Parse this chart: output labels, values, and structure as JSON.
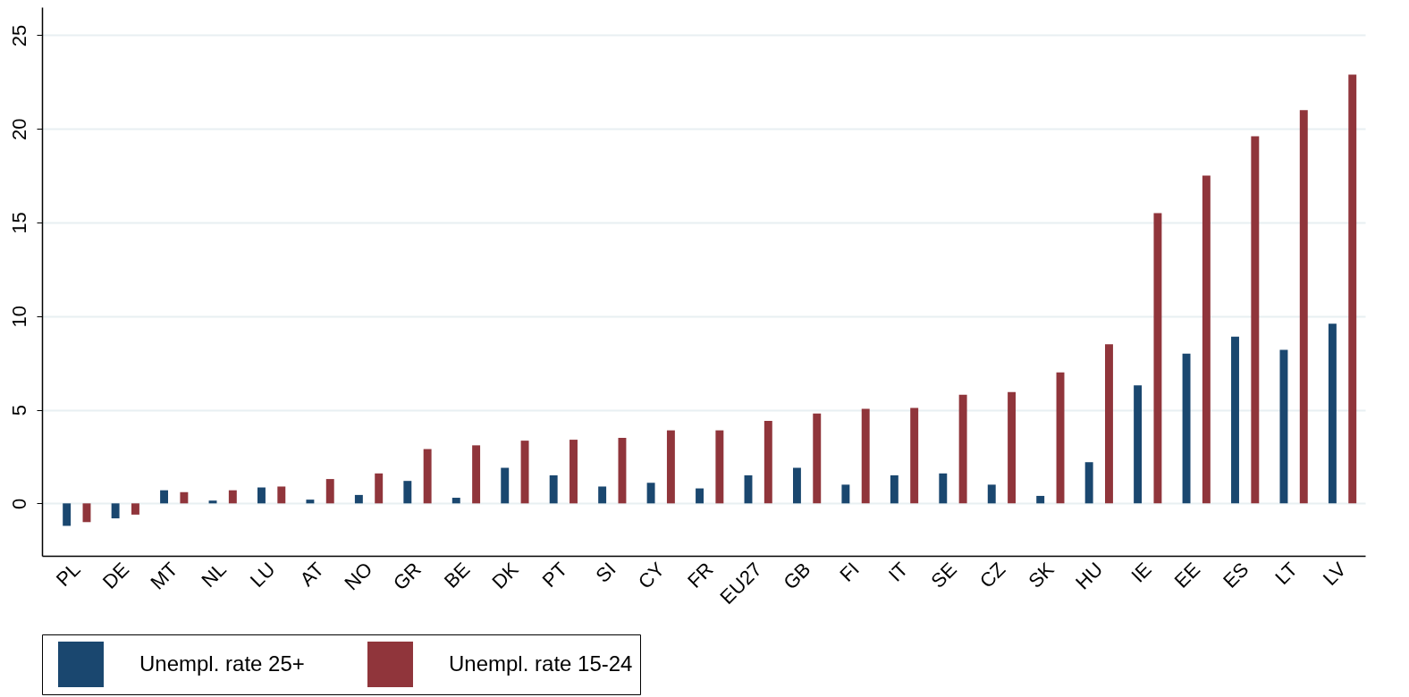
{
  "chart_data": {
    "type": "bar",
    "categories": [
      "PL",
      "DE",
      "MT",
      "NL",
      "LU",
      "AT",
      "NO",
      "GR",
      "BE",
      "DK",
      "PT",
      "SI",
      "CY",
      "FR",
      "EU27",
      "GB",
      "FI",
      "IT",
      "SE",
      "CZ",
      "SK",
      "HU",
      "IE",
      "EE",
      "ES",
      "LT",
      "LV"
    ],
    "series": [
      {
        "name": "Unempl. rate 25+",
        "color": "#1a476f",
        "values": [
          -1.2,
          -0.8,
          0.7,
          0.15,
          0.85,
          0.2,
          0.45,
          1.2,
          0.3,
          1.9,
          1.5,
          0.9,
          1.1,
          0.8,
          1.5,
          1.9,
          1.0,
          1.5,
          1.6,
          1.0,
          0.4,
          2.2,
          6.3,
          8.0,
          8.9,
          8.2,
          9.6
        ]
      },
      {
        "name": "Unempl. rate 15-24",
        "color": "#90353b",
        "values": [
          -1.0,
          -0.6,
          0.6,
          0.7,
          0.9,
          1.3,
          1.6,
          2.9,
          3.1,
          3.35,
          3.4,
          3.5,
          3.9,
          3.9,
          4.4,
          4.8,
          5.05,
          5.1,
          5.8,
          5.95,
          7.0,
          8.5,
          15.5,
          17.5,
          19.6,
          21.0,
          22.9
        ]
      }
    ],
    "ylim": [
      -2.8,
      26.5
    ],
    "yticks": [
      0,
      5,
      10,
      15,
      20,
      25
    ],
    "grid": "y",
    "legend": "bottom"
  }
}
